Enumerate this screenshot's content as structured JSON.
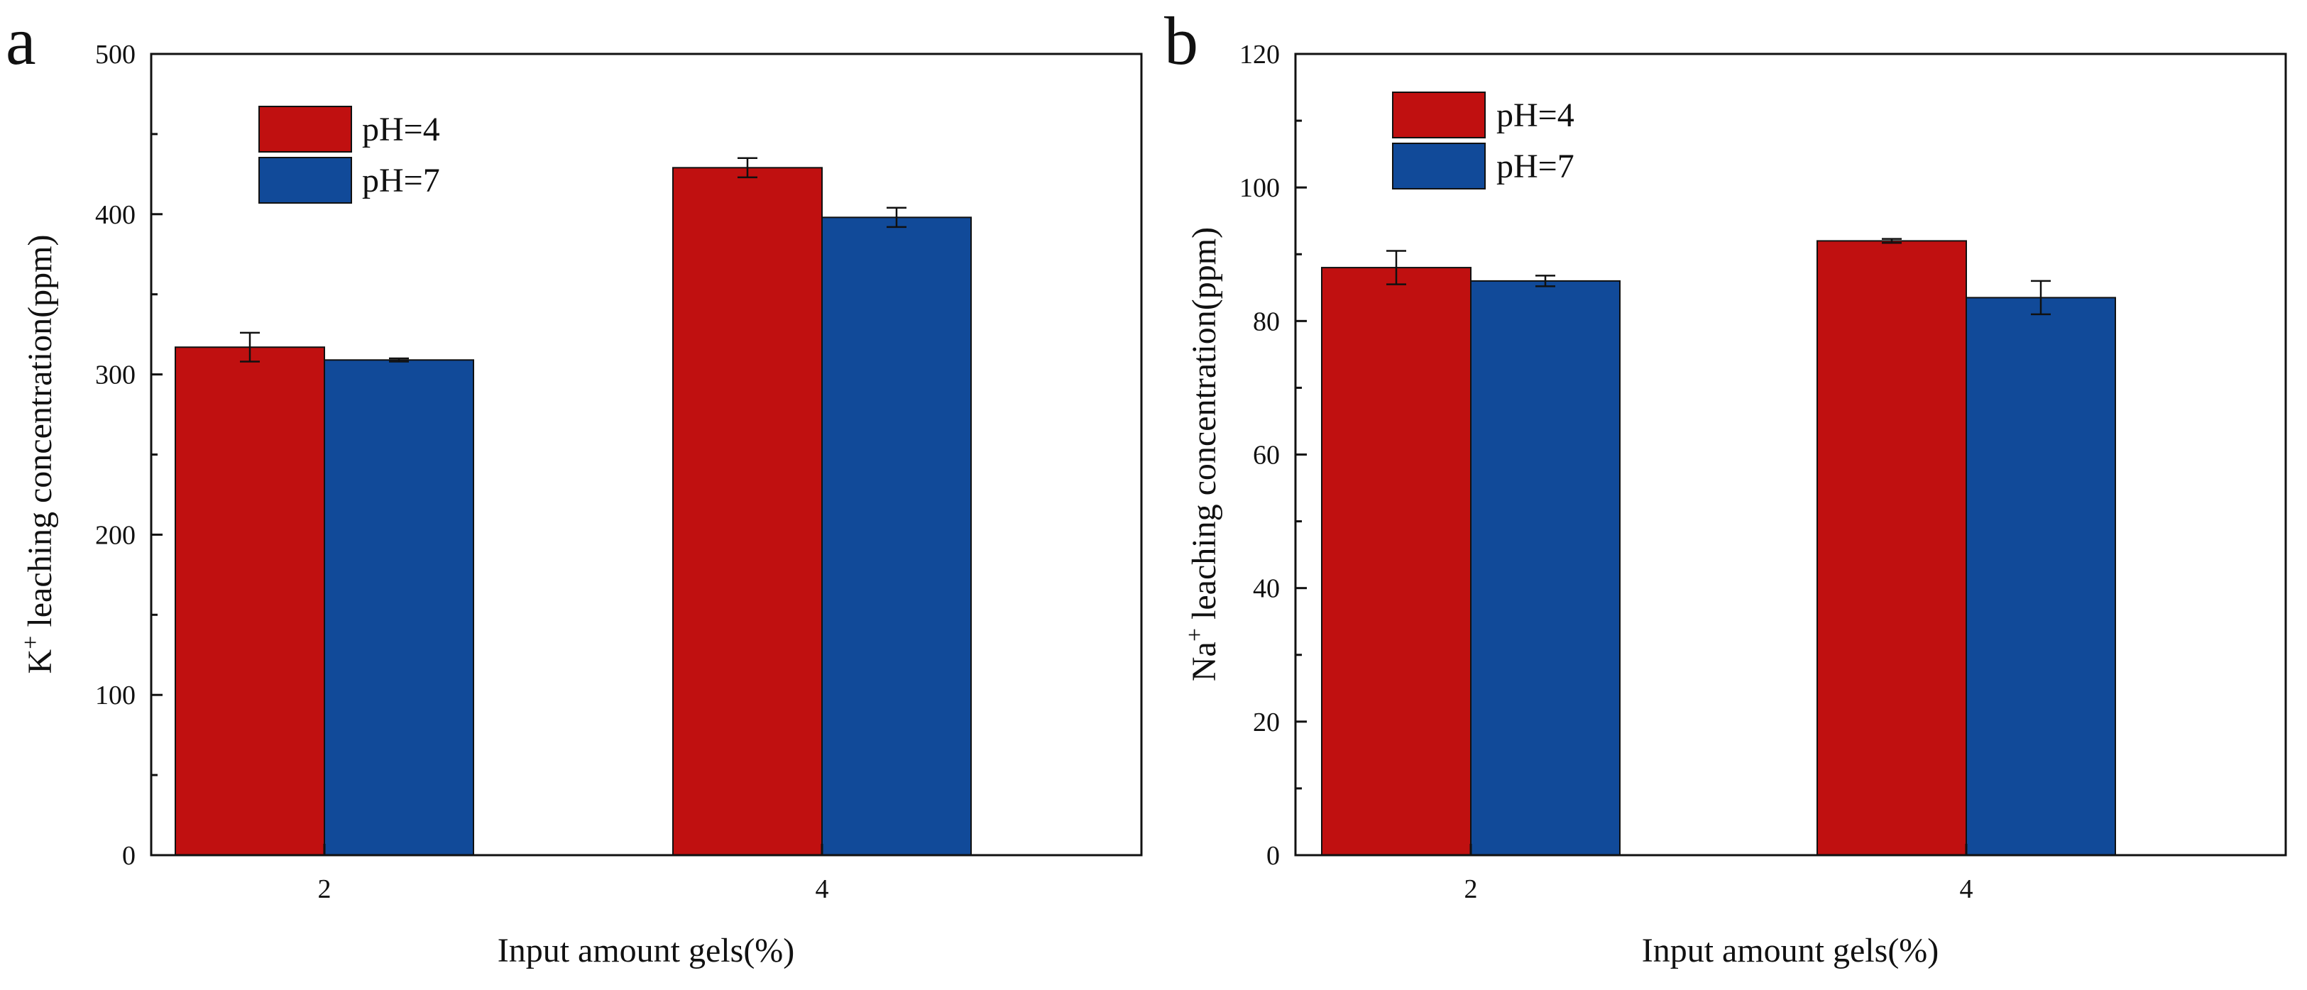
{
  "chart_data": [
    {
      "panel": "a",
      "type": "bar",
      "categories": [
        "2",
        "4"
      ],
      "series": [
        {
          "name": "pH=4",
          "color": "#c01010",
          "values": [
            317,
            429
          ],
          "errors": [
            9,
            6
          ]
        },
        {
          "name": "pH=7",
          "color": "#114a99",
          "values": [
            309,
            398
          ],
          "errors": [
            1,
            6
          ]
        }
      ],
      "xlabel": "Input amount gels(%)",
      "ylabel": {
        "prefix": "K",
        "sup": "+",
        "suffix": " leaching concentration(ppm)"
      },
      "ylim": [
        0,
        500
      ],
      "yticks": [
        0,
        100,
        200,
        300,
        400,
        500
      ],
      "legend": "top-left",
      "grid": false
    },
    {
      "panel": "b",
      "type": "bar",
      "categories": [
        "2",
        "4"
      ],
      "series": [
        {
          "name": "pH=4",
          "color": "#c01010",
          "values": [
            88,
            92
          ],
          "errors": [
            2.5,
            0.3
          ]
        },
        {
          "name": "pH=7",
          "color": "#114a99",
          "values": [
            86,
            83.5
          ],
          "errors": [
            0.8,
            2.5
          ]
        }
      ],
      "xlabel": "Input amount gels(%)",
      "ylabel": {
        "prefix": "Na",
        "sup": "+",
        "suffix": " leaching concentration(ppm)"
      },
      "ylim": [
        0,
        120
      ],
      "yticks": [
        0,
        20,
        40,
        60,
        80,
        100,
        120
      ],
      "legend": "top-left",
      "grid": false
    }
  ]
}
